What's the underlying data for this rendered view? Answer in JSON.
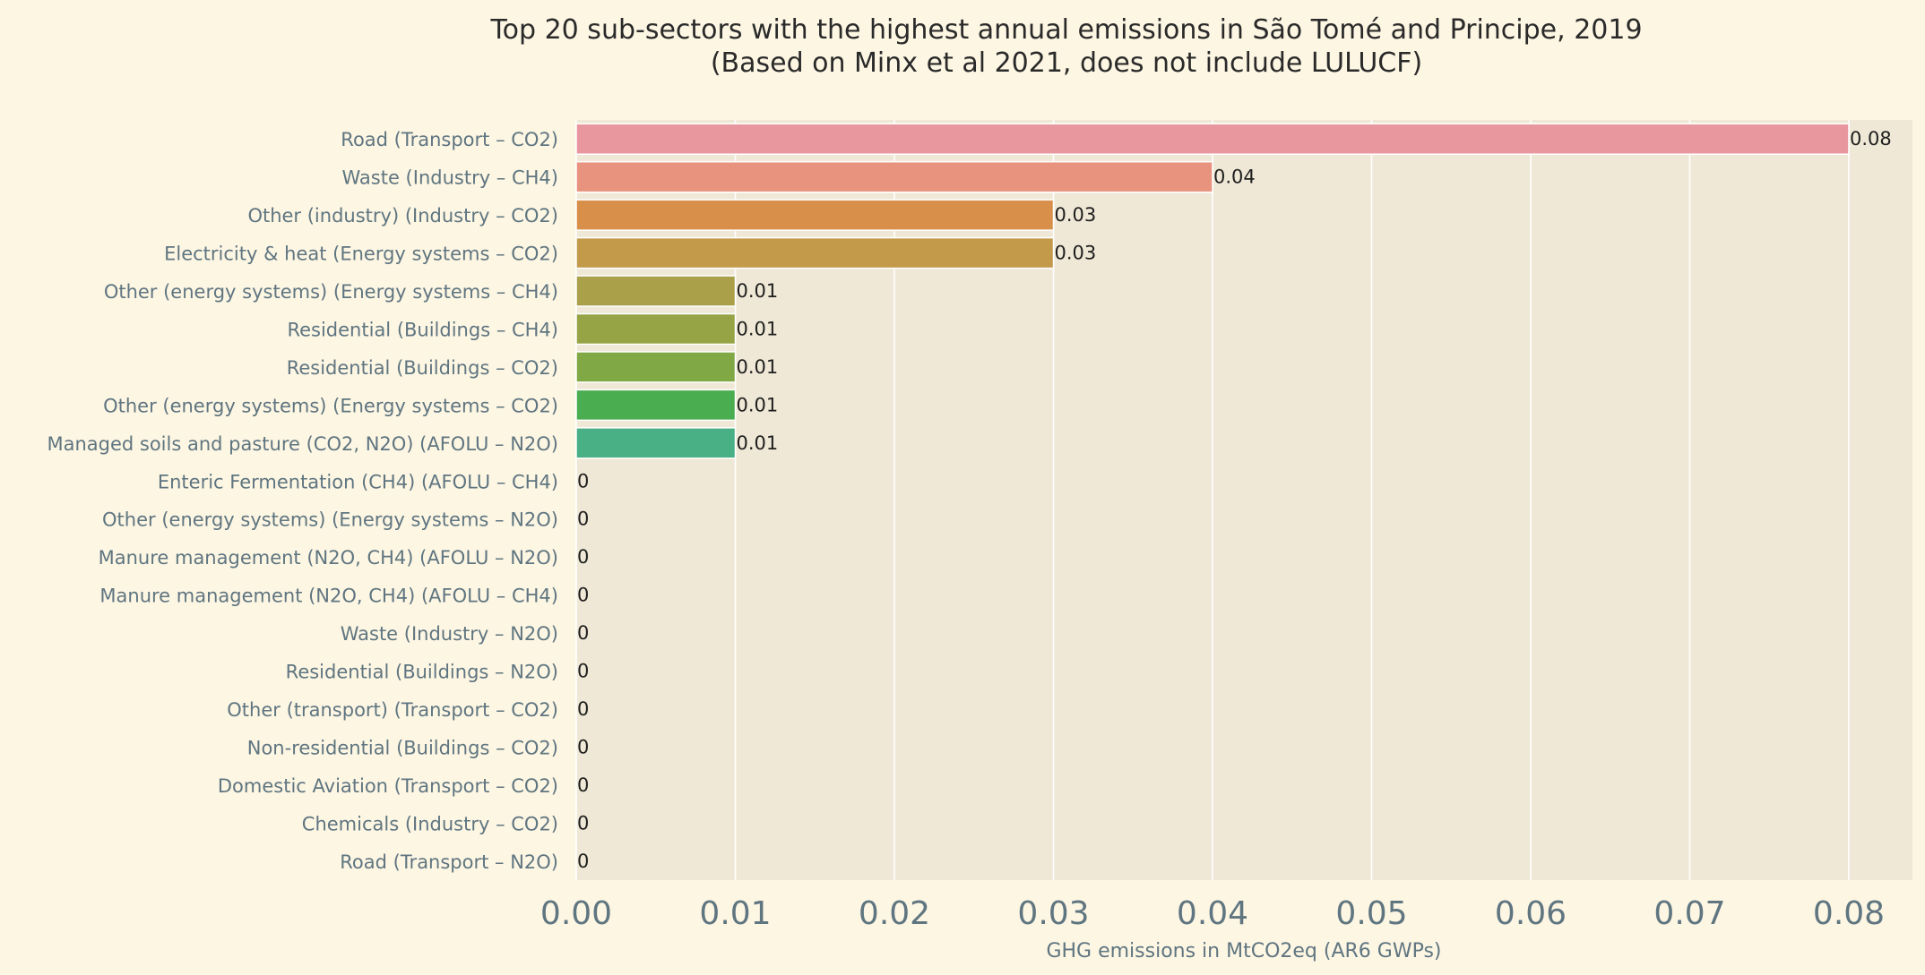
{
  "chart_data": {
    "type": "bar",
    "orientation": "horizontal",
    "title": "Top 20 sub-sectors with the highest annual emissions in São Tomé and Principe, 2019",
    "subtitle": "(Based on Minx et al 2021, does not include LULUCF)",
    "xlabel": "GHG emissions in MtCO2eq (AR6 GWPs)",
    "ylabel": "",
    "xlim": [
      0,
      0.084
    ],
    "x_ticks": [
      "0.00",
      "0.01",
      "0.02",
      "0.03",
      "0.04",
      "0.05",
      "0.06",
      "0.07",
      "0.08"
    ],
    "grid": "vertical",
    "background_color": "#fdf6e3",
    "plot_background_color": "#efe8d6",
    "categories": [
      "Road (Transport – CO2)",
      "Waste (Industry – CH4)",
      "Other (industry) (Industry – CO2)",
      "Electricity & heat (Energy systems – CO2)",
      "Other (energy systems) (Energy systems – CH4)",
      "Residential (Buildings – CH4)",
      "Residential (Buildings – CO2)",
      "Other (energy systems) (Energy systems – CO2)",
      "Managed soils and pasture (CO2, N2O) (AFOLU – N2O)",
      "Enteric Fermentation (CH4) (AFOLU – CH4)",
      "Other (energy systems) (Energy systems – N2O)",
      "Manure management (N2O, CH4) (AFOLU – N2O)",
      "Manure management (N2O, CH4) (AFOLU – CH4)",
      "Waste (Industry – N2O)",
      "Residential (Buildings – N2O)",
      "Other (transport) (Transport – CO2)",
      "Non-residential (Buildings – CO2)",
      "Domestic Aviation (Transport – CO2)",
      "Chemicals (Industry – CO2)",
      "Road (Transport – N2O)"
    ],
    "values": [
      0.08,
      0.04,
      0.03,
      0.03,
      0.01,
      0.01,
      0.01,
      0.01,
      0.01,
      0,
      0,
      0,
      0,
      0,
      0,
      0,
      0,
      0,
      0,
      0
    ],
    "value_labels": [
      "0.08",
      "0.04",
      "0.03",
      "0.03",
      "0.01",
      "0.01",
      "0.01",
      "0.01",
      "0.01",
      "0",
      "0",
      "0",
      "0",
      "0",
      "0",
      "0",
      "0",
      "0",
      "0",
      "0"
    ],
    "colors": [
      "#e9979f",
      "#e8937e",
      "#d88f4a",
      "#c29a4a",
      "#aba04a",
      "#97a446",
      "#80a845",
      "#4aad50",
      "#49af84",
      "#4aae98",
      "#4aad9f",
      "#4aaba8",
      "#49a9b4",
      "#4aa7c0",
      "#5aa0d6",
      "#8e95e4",
      "#b38be6",
      "#d07ee2",
      "#e07fcf",
      "#e68ab7"
    ]
  }
}
